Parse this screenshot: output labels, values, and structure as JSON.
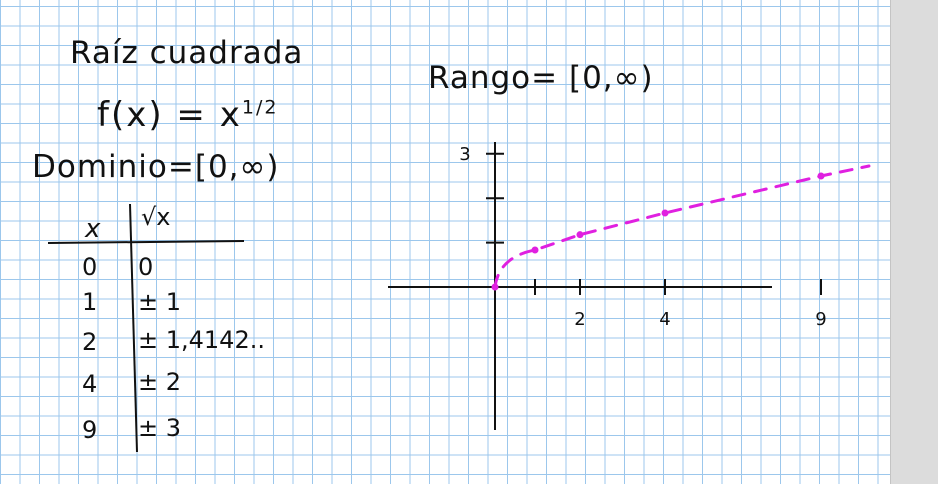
{
  "note": {
    "title": "Raíz cuadrada",
    "function_lhs": "f(x) = x",
    "function_exp": "1/2",
    "domain": "Dominio=[0,∞)",
    "range": "Rango= [0,∞)"
  },
  "table": {
    "headers": [
      "x",
      "√x"
    ],
    "rows": [
      {
        "x": "0",
        "y": "0"
      },
      {
        "x": "1",
        "y": "± 1"
      },
      {
        "x": "2",
        "y": "± 1,4142.."
      },
      {
        "x": "4",
        "y": "± 2"
      },
      {
        "x": "9",
        "y": "± 3"
      }
    ]
  },
  "colors": {
    "ink": "#111111",
    "curve": "#e020e0",
    "grid": "#9cc7ec"
  },
  "chart_data": {
    "type": "line",
    "x": [
      0,
      1,
      2,
      4,
      9
    ],
    "y": [
      0,
      1,
      1.4142,
      2,
      3
    ],
    "x_tick_labels": [
      "2",
      "4",
      "9"
    ],
    "y_tick_labels": [
      "3"
    ],
    "title": "",
    "xlabel": "",
    "ylabel": "",
    "grid": true
  }
}
